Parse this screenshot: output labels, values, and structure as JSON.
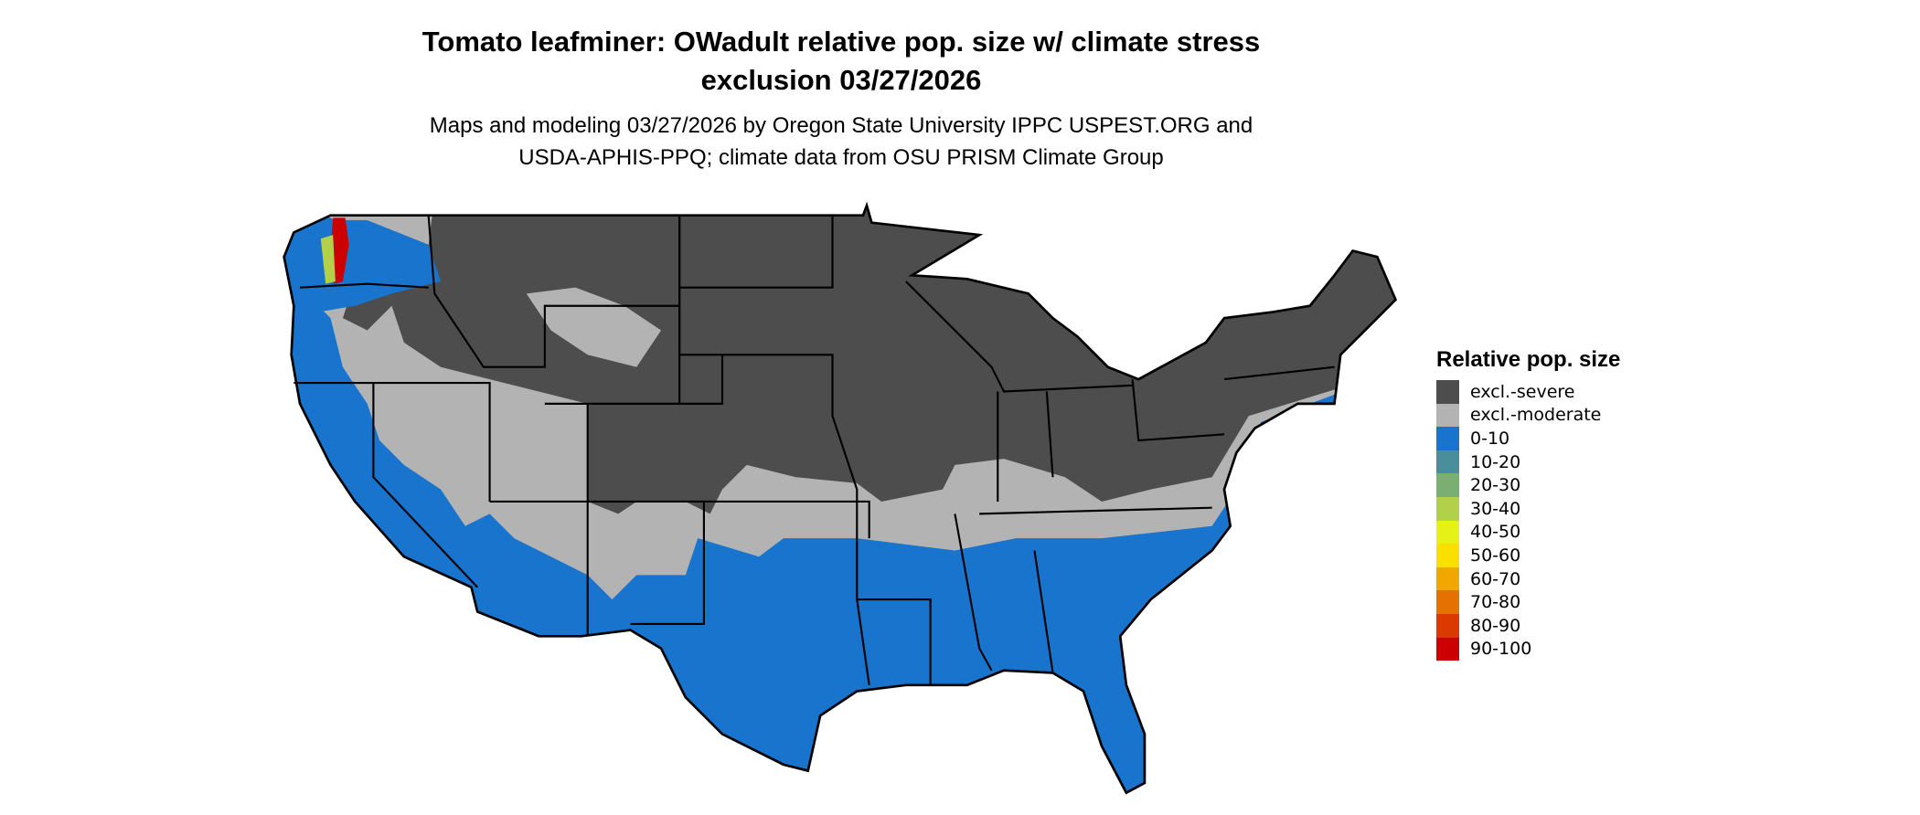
{
  "title": {
    "line1": "Tomato leafminer: OWadult relative pop. size w/ climate stress",
    "line2": "exclusion 03/27/2026"
  },
  "subtitle": {
    "line1": "Maps and modeling 03/27/2026 by Oregon State University IPPC USPEST.ORG and",
    "line2": "USDA-APHIS-PPQ; climate data from OSU PRISM Climate Group"
  },
  "chart_data": {
    "type": "heatmap",
    "region": "conterminous United States",
    "legend": {
      "title": "Relative pop. size",
      "placement": "right",
      "items": [
        {
          "label": "excl.-severe",
          "color": "#4d4d4d"
        },
        {
          "label": "excl.-moderate",
          "color": "#b3b3b3"
        },
        {
          "label": "0-10",
          "color": "#1874cd"
        },
        {
          "label": "10-20",
          "color": "#488f9b"
        },
        {
          "label": "20-30",
          "color": "#7bae73"
        },
        {
          "label": "30-40",
          "color": "#b2d04a"
        },
        {
          "label": "40-50",
          "color": "#e6f216"
        },
        {
          "label": "50-60",
          "color": "#f9e000"
        },
        {
          "label": "60-70",
          "color": "#f0a800"
        },
        {
          "label": "70-80",
          "color": "#e57200"
        },
        {
          "label": "80-90",
          "color": "#da3a00"
        },
        {
          "label": "90-100",
          "color": "#cc0000"
        }
      ]
    }
  }
}
